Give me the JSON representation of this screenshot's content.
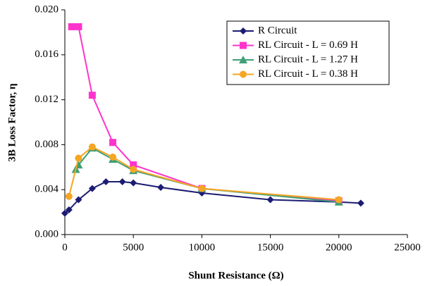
{
  "chart_data": {
    "type": "line",
    "xlabel": "Shunt Resistance (Ω)",
    "ylabel": "3B Loss Factor, η",
    "xlim": [
      0,
      25000
    ],
    "xticks": [
      0,
      5000,
      10000,
      15000,
      20000,
      25000
    ],
    "ylim": [
      0,
      0.02
    ],
    "yticks": [
      {
        "value": 0,
        "label": "0.000"
      },
      {
        "value": 0.004,
        "label": "0.004"
      },
      {
        "value": 0.008,
        "label": "0.008"
      },
      {
        "value": 0.012,
        "label": "0.012"
      },
      {
        "value": 0.016,
        "label": "0.016"
      },
      {
        "value": 0.02,
        "label": "0.020"
      }
    ],
    "grid": false,
    "legend": "upper right",
    "series": [
      {
        "name": "R Circuit",
        "color": "#1c1c74",
        "marker": "diamond",
        "x": [
          0,
          300,
          1000,
          2000,
          3000,
          4200,
          5000,
          7000,
          10000,
          15000,
          20000,
          21600
        ],
        "values": [
          0.0019,
          0.0022,
          0.0031,
          0.0041,
          0.0047,
          0.0047,
          0.0046,
          0.0042,
          0.0037,
          0.0031,
          0.0029,
          0.0028
        ]
      },
      {
        "name": "RL Circuit - L = 0.69 H",
        "color": "#ff33cc",
        "marker": "square",
        "x": [
          500,
          1000,
          2000,
          3500,
          5000,
          10000,
          20000
        ],
        "values": [
          0.0185,
          0.0185,
          0.0124,
          0.0082,
          0.0062,
          0.0041,
          0.003
        ]
      },
      {
        "name": "RL Circuit - L = 1.27 H",
        "color": "#3f9e74",
        "marker": "triangle",
        "x": [
          800,
          1000,
          2000,
          3500,
          5000,
          10000,
          20000
        ],
        "values": [
          0.0058,
          0.0062,
          0.0077,
          0.0067,
          0.0057,
          0.0041,
          0.0029
        ]
      },
      {
        "name": "RL Circuit - L = 0.38 H",
        "color": "#f5a623",
        "marker": "circle",
        "x": [
          300,
          1000,
          2000,
          3500,
          5000,
          10000,
          20000
        ],
        "values": [
          0.0034,
          0.0068,
          0.0078,
          0.0069,
          0.0058,
          0.0041,
          0.0031
        ]
      }
    ]
  }
}
